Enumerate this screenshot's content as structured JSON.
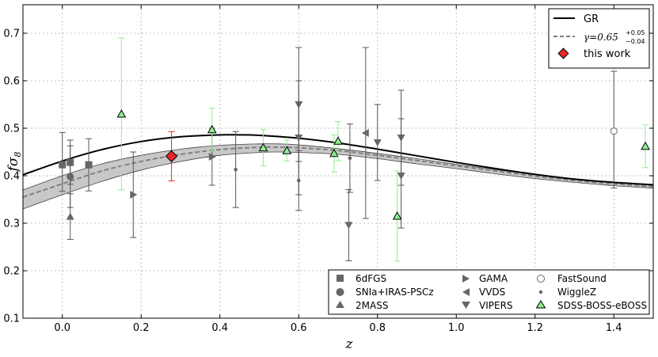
{
  "chart_data": {
    "type": "scatter",
    "title": "",
    "xlabel": "z",
    "ylabel_main": "f",
    "ylabel_sub": "σ",
    "ylabel_subsub": "8",
    "xlim": [
      -0.1,
      1.5
    ],
    "ylim": [
      0.1,
      0.76
    ],
    "x_ticks": [
      0.0,
      0.2,
      0.4,
      0.6,
      0.8,
      1.0,
      1.2,
      1.4
    ],
    "x_tick_labels": [
      "0.0",
      "0.2",
      "0.4",
      "0.6",
      "0.8",
      "1.0",
      "1.2",
      "1.4"
    ],
    "y_ticks": [
      0.1,
      0.2,
      0.3,
      0.4,
      0.5,
      0.6,
      0.7
    ],
    "y_tick_labels": [
      "0.1",
      "0.2",
      "0.3",
      "0.4",
      "0.5",
      "0.6",
      "0.7"
    ],
    "grid": true,
    "curves": {
      "gr": {
        "name": "GR",
        "color": "#000000",
        "x": [
          -0.1,
          0.0,
          0.1,
          0.2,
          0.3,
          0.4,
          0.45,
          0.5,
          0.6,
          0.7,
          0.8,
          0.9,
          1.0,
          1.1,
          1.2,
          1.3,
          1.4,
          1.5
        ],
        "y": [
          0.402,
          0.431,
          0.455,
          0.472,
          0.482,
          0.486,
          0.486,
          0.485,
          0.479,
          0.469,
          0.456,
          0.442,
          0.428,
          0.415,
          0.403,
          0.393,
          0.386,
          0.381
        ]
      },
      "gamma": {
        "name_prefix": "γ=0.65",
        "sup": "+0.05",
        "sub": "−0.04",
        "color": "#808080",
        "band_color": "#c8c8c8",
        "x": [
          -0.1,
          0.0,
          0.1,
          0.2,
          0.3,
          0.4,
          0.5,
          0.55,
          0.6,
          0.7,
          0.8,
          0.9,
          1.0,
          1.1,
          1.2,
          1.3,
          1.4,
          1.5
        ],
        "y": [
          0.355,
          0.383,
          0.41,
          0.43,
          0.445,
          0.455,
          0.46,
          0.46,
          0.459,
          0.453,
          0.443,
          0.432,
          0.421,
          0.41,
          0.399,
          0.39,
          0.383,
          0.377
        ],
        "upper": [
          0.37,
          0.4,
          0.425,
          0.443,
          0.456,
          0.464,
          0.467,
          0.467,
          0.465,
          0.457,
          0.447,
          0.436,
          0.424,
          0.413,
          0.402,
          0.393,
          0.386,
          0.38
        ],
        "lower": [
          0.33,
          0.36,
          0.388,
          0.412,
          0.43,
          0.443,
          0.449,
          0.45,
          0.449,
          0.445,
          0.436,
          0.425,
          0.415,
          0.404,
          0.394,
          0.386,
          0.379,
          0.374
        ]
      }
    },
    "series": [
      {
        "name": "6dFGS",
        "marker": "square",
        "color": "#666666",
        "points": [
          {
            "x": 0.0,
            "y": 0.423,
            "lo": 0.367,
            "hi": 0.491
          },
          {
            "x": 0.02,
            "y": 0.428,
            "lo": 0.382,
            "hi": 0.475
          },
          {
            "x": 0.067,
            "y": 0.423,
            "lo": 0.368,
            "hi": 0.478
          }
        ]
      },
      {
        "name": "SNIa+IRAS-PSCz",
        "marker": "circle",
        "color": "#666666",
        "points": [
          {
            "x": 0.02,
            "y": 0.398,
            "lo": 0.333,
            "hi": 0.463
          }
        ]
      },
      {
        "name": "2MASS",
        "marker": "triangle-up",
        "color": "#666666",
        "points": [
          {
            "x": 0.02,
            "y": 0.314,
            "lo": 0.266,
            "hi": 0.362
          }
        ]
      },
      {
        "name": "GAMA",
        "marker": "triangle-right",
        "color": "#666666",
        "points": [
          {
            "x": 0.18,
            "y": 0.36,
            "lo": 0.27,
            "hi": 0.45
          },
          {
            "x": 0.38,
            "y": 0.44,
            "lo": 0.38,
            "hi": 0.5
          }
        ]
      },
      {
        "name": "VVDS",
        "marker": "triangle-left",
        "color": "#666666",
        "points": [
          {
            "x": 0.77,
            "y": 0.49,
            "lo": 0.31,
            "hi": 0.67
          }
        ]
      },
      {
        "name": "VIPERS",
        "marker": "triangle-down",
        "color": "#666666",
        "points": [
          {
            "x": 0.6,
            "y": 0.55,
            "lo": 0.43,
            "hi": 0.67
          },
          {
            "x": 0.6,
            "y": 0.48,
            "lo": 0.36,
            "hi": 0.6
          },
          {
            "x": 0.727,
            "y": 0.296,
            "lo": 0.221,
            "hi": 0.371
          },
          {
            "x": 0.8,
            "y": 0.47,
            "lo": 0.39,
            "hi": 0.55
          },
          {
            "x": 0.86,
            "y": 0.48,
            "lo": 0.38,
            "hi": 0.58
          },
          {
            "x": 0.86,
            "y": 0.4,
            "lo": 0.29,
            "hi": 0.52
          }
        ]
      },
      {
        "name": "FastSound",
        "marker": "open-circle",
        "color": "#666666",
        "points": [
          {
            "x": 1.4,
            "y": 0.494,
            "lo": 0.374,
            "hi": 0.62
          }
        ]
      },
      {
        "name": "WiggleZ",
        "marker": "small-dot",
        "color": "#666666",
        "points": [
          {
            "x": 0.44,
            "y": 0.413,
            "lo": 0.333,
            "hi": 0.493
          },
          {
            "x": 0.6,
            "y": 0.39,
            "lo": 0.327,
            "hi": 0.453
          },
          {
            "x": 0.73,
            "y": 0.437,
            "lo": 0.365,
            "hi": 0.509
          }
        ]
      },
      {
        "name": "SDSS-BOSS-eBOSS",
        "marker": "green-triangle",
        "color": "#90ee90",
        "points": [
          {
            "x": 0.15,
            "y": 0.53,
            "lo": 0.37,
            "hi": 0.69
          },
          {
            "x": 0.38,
            "y": 0.497,
            "lo": 0.452,
            "hi": 0.542
          },
          {
            "x": 0.51,
            "y": 0.459,
            "lo": 0.421,
            "hi": 0.497
          },
          {
            "x": 0.57,
            "y": 0.453,
            "lo": 0.431,
            "hi": 0.475
          },
          {
            "x": 0.69,
            "y": 0.447,
            "lo": 0.408,
            "hi": 0.486
          },
          {
            "x": 0.7,
            "y": 0.473,
            "lo": 0.432,
            "hi": 0.514
          },
          {
            "x": 0.85,
            "y": 0.315,
            "lo": 0.22,
            "hi": 0.41
          },
          {
            "x": 1.48,
            "y": 0.462,
            "lo": 0.417,
            "hi": 0.507
          }
        ]
      },
      {
        "name": "this work",
        "marker": "diamond",
        "color": "#e8282a",
        "points": [
          {
            "x": 0.277,
            "y": 0.441,
            "lo": 0.389,
            "hi": 0.493
          }
        ]
      }
    ],
    "legend_top": {
      "position": "top-right",
      "entries": [
        "GR",
        "γ=0.65",
        "this work"
      ]
    },
    "legend_bottom": {
      "position": "bottom-right",
      "entries": [
        "6dFGS",
        "SNIa+IRAS-PSCz",
        "2MASS",
        "GAMA",
        "VVDS",
        "VIPERS",
        "FastSound",
        "WiggleZ",
        "SDSS-BOSS-eBOSS"
      ]
    }
  }
}
